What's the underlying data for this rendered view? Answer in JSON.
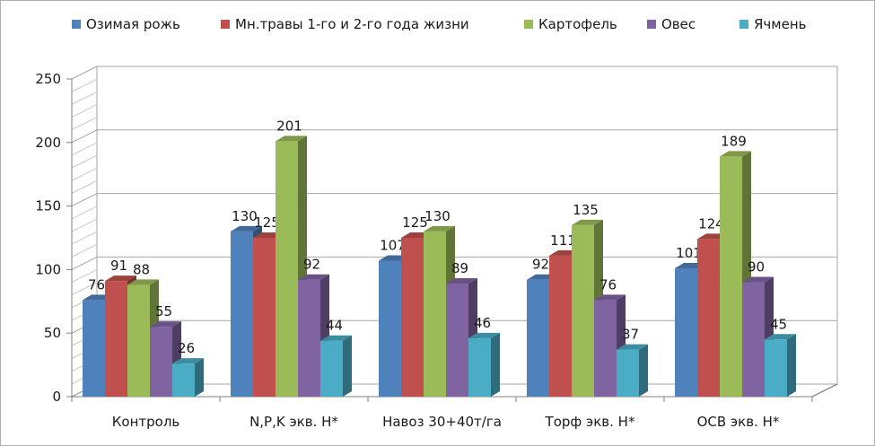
{
  "chart_data": {
    "type": "bar",
    "categories": [
      "Контроль",
      "N,P,K экв. Н*",
      "Навоз 30+40т/га",
      "Торф экв. Н*",
      "ОСВ экв. Н*"
    ],
    "series": [
      {
        "name": "Озимая рожь",
        "color": "#4f81bd",
        "values": [
          76,
          130,
          107,
          92,
          101
        ]
      },
      {
        "name": "Мн.травы 1-го и 2-го года жизни",
        "color": "#c0504d",
        "values": [
          91,
          125,
          125,
          111,
          124
        ]
      },
      {
        "name": "Картофель",
        "color": "#9bbb59",
        "values": [
          88,
          201,
          130,
          135,
          189
        ]
      },
      {
        "name": "Овес",
        "color": "#8064a2",
        "values": [
          55,
          92,
          89,
          76,
          90
        ]
      },
      {
        "name": "Ячмень",
        "color": "#4bacc6",
        "values": [
          26,
          44,
          46,
          37,
          45
        ]
      }
    ],
    "yticks": [
      0,
      50,
      100,
      150,
      200,
      250
    ],
    "ylim": [
      0,
      250
    ],
    "grid": true,
    "legend": "top",
    "style": "3d-clustered-column"
  }
}
